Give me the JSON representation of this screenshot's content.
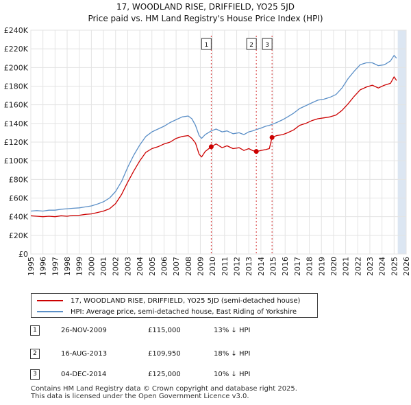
{
  "chart_data": {
    "type": "line",
    "title": "17, WOODLAND RISE, DRIFFIELD, YO25 5JD",
    "subtitle": "Price paid vs. HM Land Registry's House Price Index (HPI)",
    "xlabel": "",
    "ylabel": "",
    "xlim": [
      1995,
      2026
    ],
    "ylim": [
      0,
      240000
    ],
    "y_ticks": [
      {
        "value": 0,
        "label": "£0"
      },
      {
        "value": 20000,
        "label": "£20K"
      },
      {
        "value": 40000,
        "label": "£40K"
      },
      {
        "value": 60000,
        "label": "£60K"
      },
      {
        "value": 80000,
        "label": "£80K"
      },
      {
        "value": 100000,
        "label": "£100K"
      },
      {
        "value": 120000,
        "label": "£120K"
      },
      {
        "value": 140000,
        "label": "£140K"
      },
      {
        "value": 160000,
        "label": "£160K"
      },
      {
        "value": 180000,
        "label": "£180K"
      },
      {
        "value": 200000,
        "label": "£200K"
      },
      {
        "value": 220000,
        "label": "£220K"
      },
      {
        "value": 240000,
        "label": "£240K"
      }
    ],
    "x_ticks": [
      "1995",
      "1996",
      "1997",
      "1998",
      "1999",
      "2000",
      "2001",
      "2002",
      "2003",
      "2004",
      "2005",
      "2006",
      "2007",
      "2008",
      "2009",
      "2010",
      "2011",
      "2012",
      "2013",
      "2014",
      "2015",
      "2016",
      "2017",
      "2018",
      "2019",
      "2020",
      "2021",
      "2022",
      "2023",
      "2024",
      "2025",
      "2026"
    ],
    "grid": true,
    "future_shade_start": 2025.3,
    "colors": {
      "property": "#cc0000",
      "hpi": "#5b8fc7",
      "shade": "#dce6f2",
      "marker_line": "#cc0000"
    },
    "series": [
      {
        "name": "17, WOODLAND RISE, DRIFFIELD, YO25 5JD (semi-detached house)",
        "color": "#cc0000",
        "x": [
          1995.0,
          1995.5,
          1996.0,
          1996.5,
          1997.0,
          1997.5,
          1998.0,
          1998.5,
          1999.0,
          1999.5,
          2000.0,
          2000.5,
          2001.0,
          2001.5,
          2002.0,
          2002.5,
          2003.0,
          2003.5,
          2004.0,
          2004.5,
          2005.0,
          2005.5,
          2006.0,
          2006.5,
          2007.0,
          2007.5,
          2008.0,
          2008.3,
          2008.6,
          2008.9,
          2009.1,
          2009.4,
          2009.9,
          2010.3,
          2010.8,
          2011.2,
          2011.7,
          2012.2,
          2012.6,
          2013.0,
          2013.3,
          2013.62,
          2014.0,
          2014.4,
          2014.7,
          2014.92,
          2015.3,
          2015.8,
          2016.2,
          2016.7,
          2017.2,
          2017.7,
          2018.2,
          2018.7,
          2019.2,
          2019.7,
          2020.2,
          2020.7,
          2021.2,
          2021.7,
          2022.2,
          2022.7,
          2023.2,
          2023.7,
          2024.2,
          2024.7,
          2025.0,
          2025.2
        ],
        "values": [
          41000,
          40500,
          40000,
          40500,
          40000,
          41000,
          40500,
          41500,
          41500,
          42500,
          43000,
          44500,
          46000,
          48500,
          54000,
          64000,
          77000,
          89000,
          100000,
          109000,
          113000,
          115000,
          118000,
          120000,
          124000,
          126000,
          127000,
          124000,
          119000,
          107000,
          104000,
          110000,
          115000,
          118000,
          114000,
          116000,
          113000,
          114000,
          111000,
          113000,
          111000,
          109950,
          111000,
          112000,
          113000,
          125000,
          127000,
          128000,
          130000,
          133000,
          138000,
          140000,
          143000,
          145000,
          146000,
          147000,
          149000,
          154000,
          161000,
          169000,
          176000,
          179000,
          181000,
          178000,
          181000,
          183000,
          190000,
          186000
        ]
      },
      {
        "name": "HPI: Average price, semi-detached house, East Riding of Yorkshire",
        "color": "#5b8fc7",
        "x": [
          1995.0,
          1995.5,
          1996.0,
          1996.5,
          1997.0,
          1997.5,
          1998.0,
          1998.5,
          1999.0,
          1999.5,
          2000.0,
          2000.5,
          2001.0,
          2001.5,
          2002.0,
          2002.5,
          2003.0,
          2003.5,
          2004.0,
          2004.5,
          2005.0,
          2005.5,
          2006.0,
          2006.5,
          2007.0,
          2007.5,
          2008.0,
          2008.3,
          2008.6,
          2008.9,
          2009.1,
          2009.4,
          2009.9,
          2010.3,
          2010.8,
          2011.2,
          2011.7,
          2012.2,
          2012.6,
          2013.0,
          2013.3,
          2013.62,
          2014.0,
          2014.4,
          2014.7,
          2014.92,
          2015.3,
          2015.8,
          2016.2,
          2016.7,
          2017.2,
          2017.7,
          2018.2,
          2018.7,
          2019.2,
          2019.7,
          2020.2,
          2020.7,
          2021.2,
          2021.7,
          2022.2,
          2022.7,
          2023.2,
          2023.7,
          2024.2,
          2024.7,
          2025.0,
          2025.2
        ],
        "values": [
          46000,
          46500,
          46000,
          47000,
          47000,
          48000,
          48500,
          49000,
          49500,
          50500,
          51500,
          53500,
          56000,
          60000,
          67000,
          78000,
          93000,
          106000,
          117000,
          126000,
          131000,
          134000,
          137000,
          141000,
          144000,
          147000,
          148000,
          145000,
          138000,
          127000,
          124000,
          128000,
          132000,
          134000,
          131000,
          132000,
          129000,
          130000,
          128000,
          131000,
          132000,
          133500,
          135000,
          137000,
          138000,
          139000,
          141000,
          144000,
          147000,
          151000,
          156000,
          159000,
          162000,
          165000,
          166000,
          168000,
          171000,
          178000,
          188000,
          196000,
          203000,
          205000,
          205000,
          202000,
          203000,
          207000,
          213000,
          210000
        ]
      }
    ],
    "sales": [
      {
        "label": "1",
        "x": 2009.9,
        "value": 115000
      },
      {
        "label": "2",
        "x": 2013.62,
        "value": 109950
      },
      {
        "label": "3",
        "x": 2014.92,
        "value": 125000
      }
    ]
  },
  "legend": {
    "property_label": "17, WOODLAND RISE, DRIFFIELD, YO25 5JD (semi-detached house)",
    "hpi_label": "HPI: Average price, semi-detached house, East Riding of Yorkshire"
  },
  "sales_table": [
    {
      "num": "1",
      "date": "26-NOV-2009",
      "price": "£115,000",
      "hpi": "13% ↓ HPI"
    },
    {
      "num": "2",
      "date": "16-AUG-2013",
      "price": "£109,950",
      "hpi": "18% ↓ HPI"
    },
    {
      "num": "3",
      "date": "04-DEC-2014",
      "price": "£125,000",
      "hpi": "10% ↓ HPI"
    }
  ],
  "footer": {
    "line1": "Contains HM Land Registry data © Crown copyright and database right 2025.",
    "line2": "This data is licensed under the Open Government Licence v3.0."
  }
}
